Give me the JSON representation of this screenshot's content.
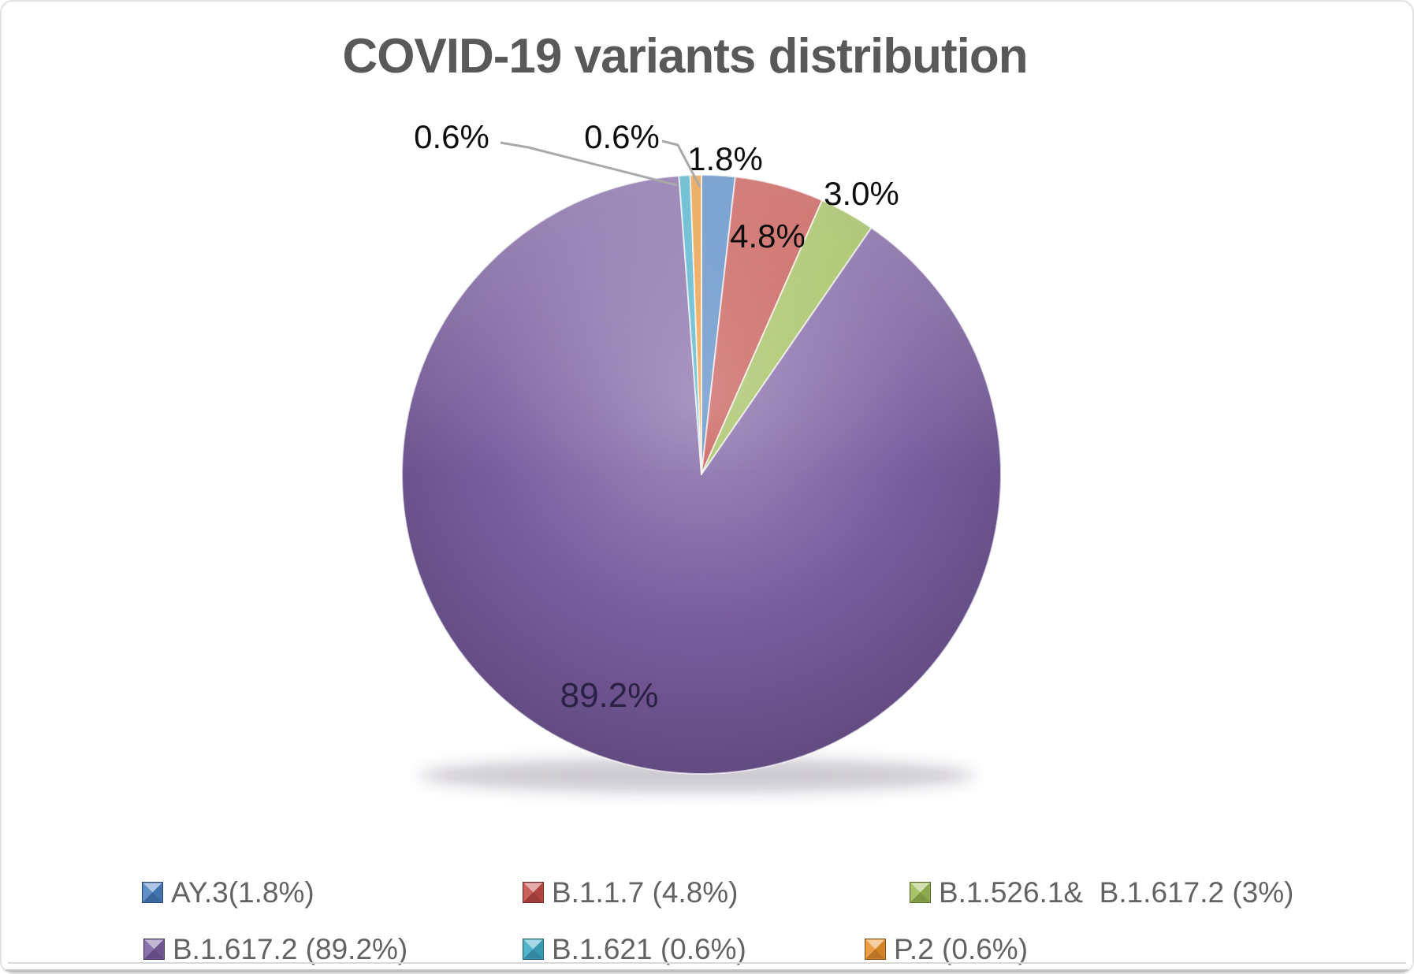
{
  "header": {
    "title": "COVID-19 variants distribution"
  },
  "chart_data": {
    "type": "pie",
    "title": "COVID-19 variants distribution",
    "start_angle_deg": 0,
    "direction": "clockwise",
    "legend_position": "bottom",
    "slices": [
      {
        "label": "AY.3",
        "value": 1.8,
        "data_label": "1.8%",
        "color": "#4a80c0",
        "legend": "AY.3(1.8%)"
      },
      {
        "label": "B.1.1.7",
        "value": 4.8,
        "data_label": "4.8%",
        "color": "#c24b46",
        "legend": "B.1.1.7 (4.8%)"
      },
      {
        "label": "B.1.526.1 & B.1.617.2",
        "value": 3.0,
        "data_label": "3.0%",
        "color": "#9cbb54",
        "legend": "B.1.526.1&  B.1.617.2 (3%)"
      },
      {
        "label": "B.1.617.2",
        "value": 89.2,
        "data_label": "89.2%",
        "color": "#7a5ea0",
        "legend": "B.1.617.2 (89.2%)"
      },
      {
        "label": "B.1.621",
        "value": 0.6,
        "data_label": "0.6%",
        "color": "#3ea9c5",
        "legend": "B.1.621 (0.6%)"
      },
      {
        "label": "P.2",
        "value": 0.6,
        "data_label": "0.6%",
        "color": "#e8912d",
        "legend": "P.2 (0.6%)"
      }
    ]
  }
}
